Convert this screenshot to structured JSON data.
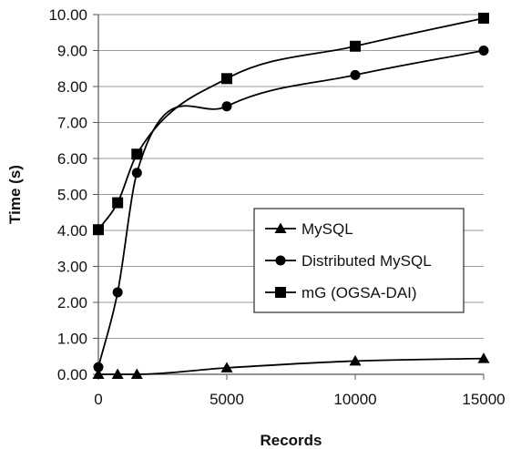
{
  "chart_data": {
    "type": "line",
    "xlabel": "Records",
    "ylabel": "Time (s)",
    "xlim": [
      0,
      15000
    ],
    "ylim": [
      0,
      10
    ],
    "x_ticks": [
      "0",
      "5000",
      "10000",
      "15000"
    ],
    "y_ticks": [
      "0.00",
      "1.00",
      "2.00",
      "3.00",
      "4.00",
      "5.00",
      "6.00",
      "7.00",
      "8.00",
      "9.00",
      "10.00"
    ],
    "grid": "horizontal",
    "legend_position": "lower-right",
    "series": [
      {
        "name": "MySQL",
        "marker": "triangle",
        "x": [
          0,
          750,
          1500,
          5000,
          10000,
          15000
        ],
        "y": [
          0.0,
          0.0,
          0.0,
          0.18,
          0.37,
          0.44
        ]
      },
      {
        "name": "Distributed MySQL",
        "marker": "circle",
        "x": [
          0,
          750,
          1500,
          5000,
          10000,
          15000
        ],
        "y": [
          0.2,
          2.28,
          5.6,
          7.45,
          8.32,
          9.0
        ]
      },
      {
        "name": "mG (OGSA-DAI)",
        "marker": "square",
        "x": [
          0,
          750,
          1500,
          5000,
          10000,
          15000
        ],
        "y": [
          4.02,
          4.77,
          6.12,
          8.22,
          9.12,
          9.9
        ]
      }
    ]
  }
}
